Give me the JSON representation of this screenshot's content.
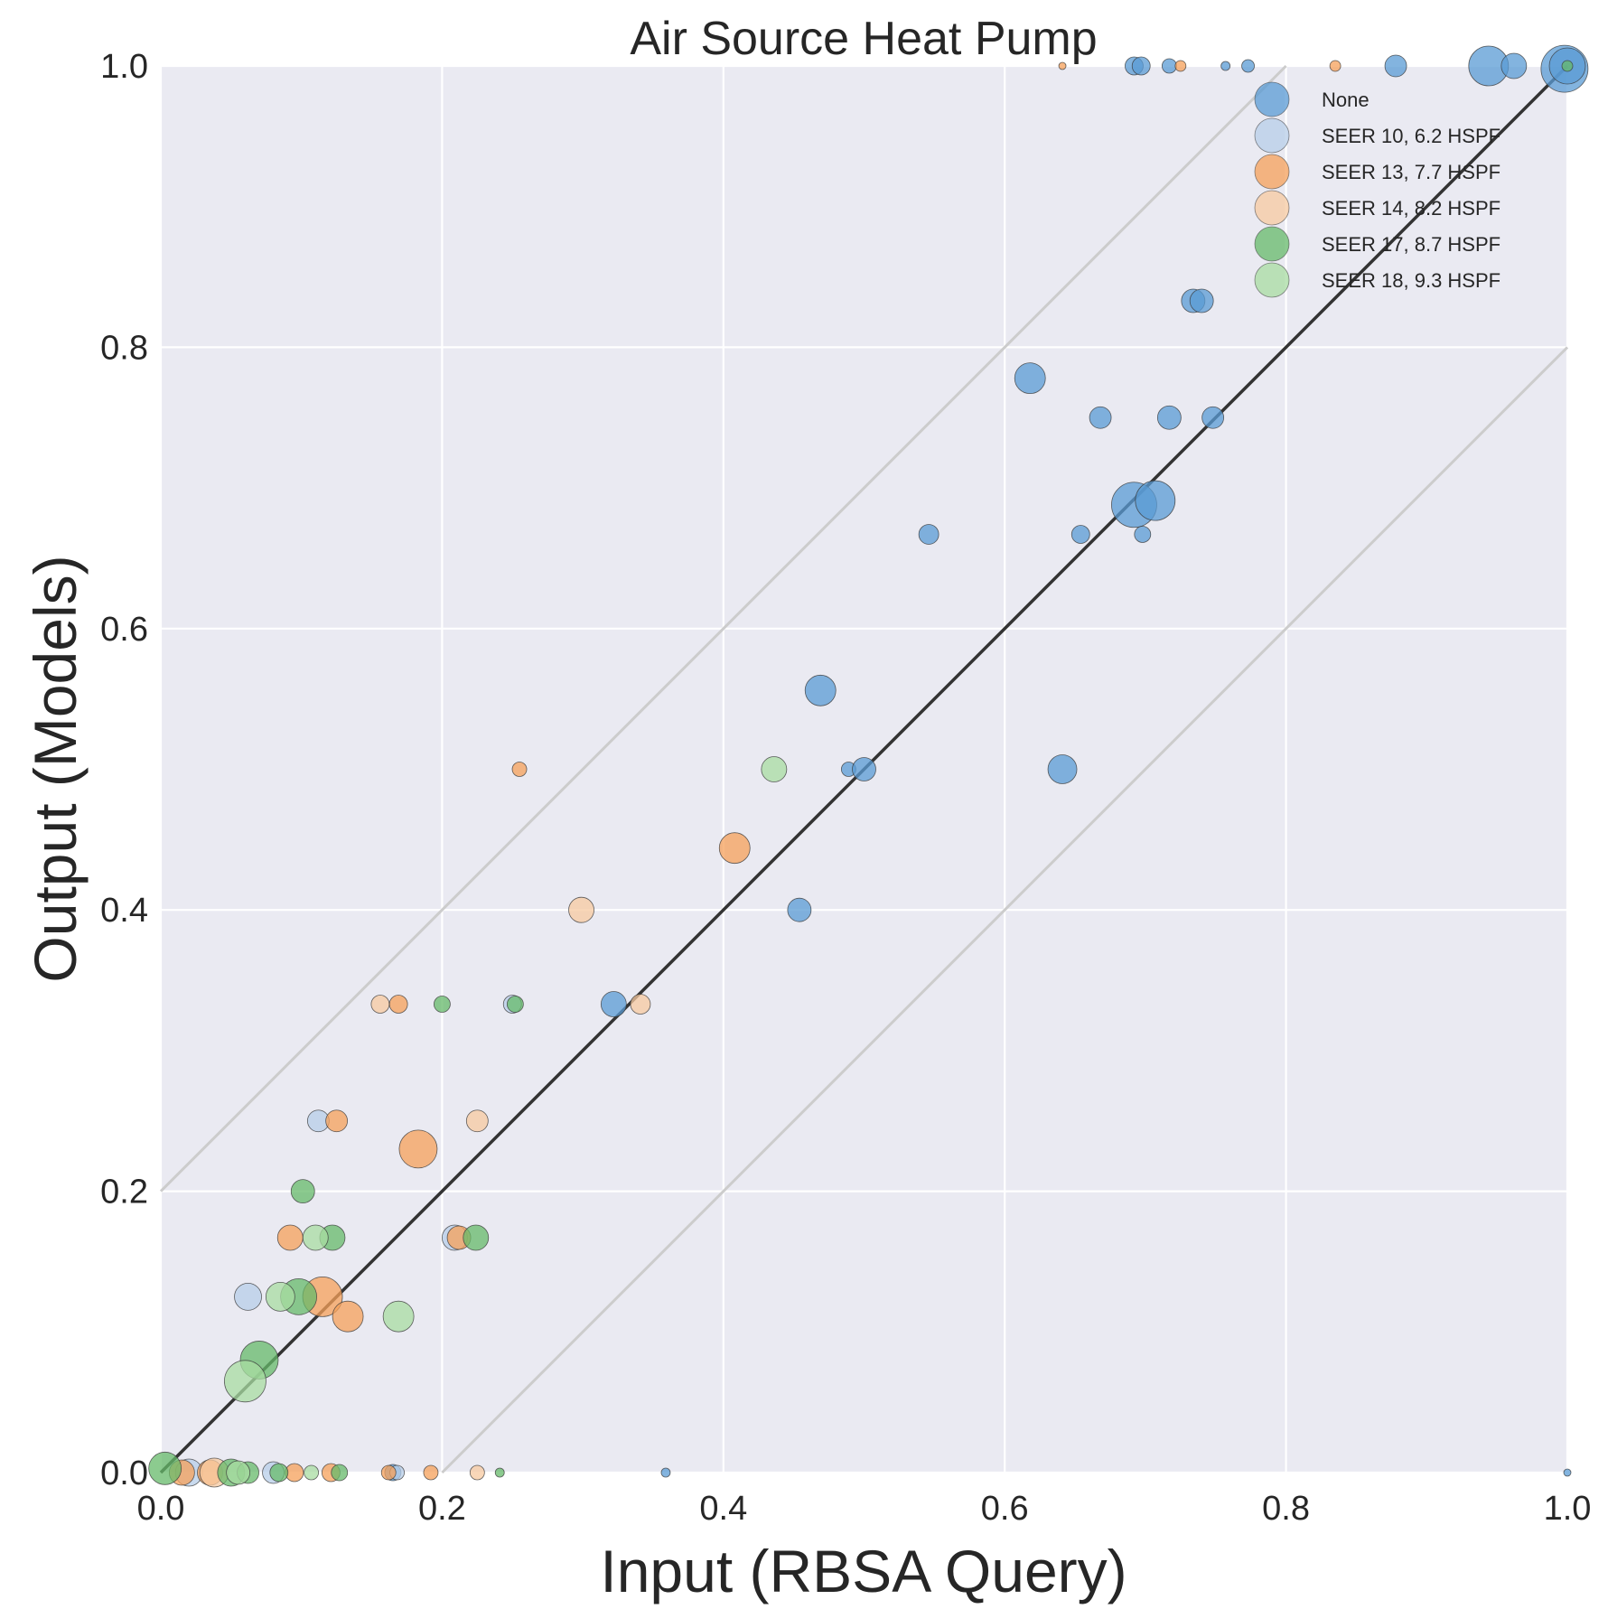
{
  "chart_data": {
    "type": "scatter",
    "title": "Air Source Heat Pump",
    "xlabel": "Input (RBSA Query)",
    "ylabel": "Output (Models)",
    "xlim": [
      0.0,
      1.0
    ],
    "ylim": [
      0.0,
      1.0
    ],
    "xticks": [
      "0.0",
      "0.2",
      "0.4",
      "0.6",
      "0.8",
      "1.0"
    ],
    "yticks": [
      "0.0",
      "0.2",
      "0.4",
      "0.6",
      "0.8",
      "1.0"
    ],
    "grid": true,
    "legend_position": "top-right",
    "reference_lines": [
      {
        "kind": "identity",
        "offset": 0.0,
        "color": "#333333"
      },
      {
        "kind": "band",
        "offset": 0.2,
        "color": "#cccccc"
      },
      {
        "kind": "band",
        "offset": -0.2,
        "color": "#cccccc"
      }
    ],
    "series": [
      {
        "name": "None",
        "color": "#5a9bd4",
        "points": [
          [
            0.692,
            1.0,
            10
          ],
          [
            0.697,
            1.0,
            10
          ],
          [
            0.717,
            1.0,
            8
          ],
          [
            0.757,
            1.0,
            5
          ],
          [
            0.773,
            1.0,
            7
          ],
          [
            0.878,
            1.0,
            12
          ],
          [
            0.944,
            1.0,
            22
          ],
          [
            0.962,
            1.0,
            14
          ],
          [
            0.998,
            0.998,
            26
          ],
          [
            1.0,
            1.0,
            20
          ],
          [
            0.734,
            0.833,
            13
          ],
          [
            0.74,
            0.833,
            13
          ],
          [
            0.618,
            0.778,
            17
          ],
          [
            0.668,
            0.75,
            12
          ],
          [
            0.717,
            0.75,
            13
          ],
          [
            0.748,
            0.75,
            12
          ],
          [
            0.692,
            0.688,
            25
          ],
          [
            0.707,
            0.691,
            22
          ],
          [
            0.546,
            0.667,
            11
          ],
          [
            0.654,
            0.667,
            10
          ],
          [
            0.698,
            0.667,
            9
          ],
          [
            0.469,
            0.556,
            17
          ],
          [
            0.489,
            0.5,
            8
          ],
          [
            0.5,
            0.5,
            13
          ],
          [
            0.641,
            0.5,
            16
          ],
          [
            0.454,
            0.4,
            13
          ],
          [
            0.322,
            0.333,
            14
          ],
          [
            0.165,
            0.0,
            9
          ],
          [
            0.359,
            0.0,
            5
          ],
          [
            1.0,
            0.0,
            4
          ]
        ]
      },
      {
        "name": "SEER 10, 6.2 HSPF",
        "color": "#b7cde8",
        "points": [
          [
            0.112,
            0.25,
            12
          ],
          [
            0.209,
            0.167,
            14
          ],
          [
            0.062,
            0.125,
            15
          ],
          [
            0.08,
            0.0,
            12
          ],
          [
            0.168,
            0.0,
            8
          ],
          [
            0.25,
            0.333,
            10
          ],
          [
            0.02,
            0.0,
            15
          ]
        ]
      },
      {
        "name": "SEER 13, 7.7 HSPF",
        "color": "#f5a05a",
        "points": [
          [
            0.641,
            1.0,
            4
          ],
          [
            0.725,
            1.0,
            6
          ],
          [
            0.835,
            1.0,
            6
          ],
          [
            0.255,
            0.5,
            8
          ],
          [
            0.408,
            0.444,
            17
          ],
          [
            0.169,
            0.333,
            10
          ],
          [
            0.125,
            0.25,
            12
          ],
          [
            0.183,
            0.23,
            21
          ],
          [
            0.092,
            0.167,
            14
          ],
          [
            0.212,
            0.167,
            13
          ],
          [
            0.115,
            0.125,
            22
          ],
          [
            0.133,
            0.111,
            17
          ],
          [
            0.015,
            0.0,
            14
          ],
          [
            0.035,
            0.0,
            14
          ],
          [
            0.095,
            0.0,
            10
          ],
          [
            0.121,
            0.0,
            10
          ],
          [
            0.162,
            0.0,
            8
          ],
          [
            0.192,
            0.0,
            8
          ]
        ]
      },
      {
        "name": "SEER 14, 8.2 HSPF",
        "color": "#f7c9a0",
        "points": [
          [
            0.299,
            0.4,
            14
          ],
          [
            0.156,
            0.333,
            10
          ],
          [
            0.341,
            0.333,
            11
          ],
          [
            0.225,
            0.25,
            12
          ],
          [
            0.038,
            0.0,
            16
          ],
          [
            0.225,
            0.0,
            8
          ]
        ]
      },
      {
        "name": "SEER 17, 8.7 HSPF",
        "color": "#66b96a",
        "points": [
          [
            1.0,
            1.0,
            6
          ],
          [
            0.2,
            0.333,
            9
          ],
          [
            0.252,
            0.333,
            9
          ],
          [
            0.101,
            0.2,
            13
          ],
          [
            0.122,
            0.167,
            14
          ],
          [
            0.224,
            0.167,
            14
          ],
          [
            0.098,
            0.125,
            20
          ],
          [
            0.07,
            0.08,
            21
          ],
          [
            0.003,
            0.003,
            18
          ],
          [
            0.05,
            0.0,
            15
          ],
          [
            0.062,
            0.0,
            12
          ],
          [
            0.084,
            0.0,
            10
          ],
          [
            0.127,
            0.0,
            9
          ],
          [
            0.241,
            0.0,
            5
          ]
        ]
      },
      {
        "name": "SEER 18, 9.3 HSPF",
        "color": "#a8dca2",
        "points": [
          [
            0.436,
            0.5,
            14
          ],
          [
            0.11,
            0.167,
            14
          ],
          [
            0.085,
            0.125,
            16
          ],
          [
            0.169,
            0.111,
            17
          ],
          [
            0.06,
            0.065,
            23
          ],
          [
            0.055,
            0.0,
            13
          ],
          [
            0.107,
            0.0,
            8
          ]
        ]
      }
    ]
  }
}
